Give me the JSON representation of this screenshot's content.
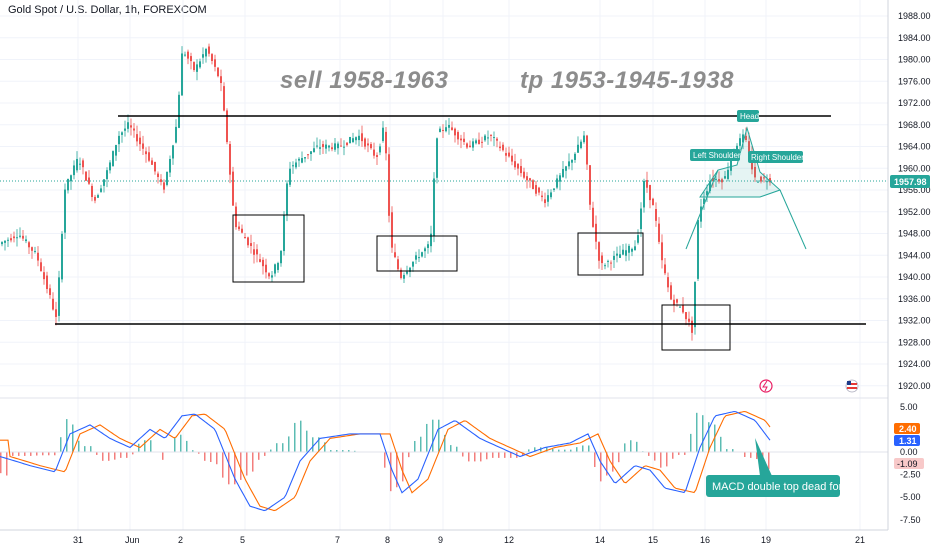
{
  "symbol": {
    "title": "Gold Spot / U.S. Dollar, 1h, FOREXCOM"
  },
  "annotations": {
    "sell": "sell  1958-1963",
    "tp": "tp  1953-1945-1938",
    "head": "Head",
    "left_shoulder": "Left Shoulder",
    "right_shoulder": "Right Shoulder",
    "macd_note": "MACD double top dead fork"
  },
  "price_axis": {
    "ticks": [
      "1988.00",
      "1984.00",
      "1980.00",
      "1976.00",
      "1972.00",
      "1968.00",
      "1964.00",
      "1960.00",
      "1956.00",
      "1952.00",
      "1948.00",
      "1944.00",
      "1940.00",
      "1936.00",
      "1932.00",
      "1928.00",
      "1924.00",
      "1920.00"
    ],
    "current_price": "1957.98"
  },
  "macd_axis": {
    "ticks": [
      "5.00",
      "2.50",
      "0.00",
      "-2.50",
      "-5.00",
      "-7.50"
    ],
    "badges": [
      "2.40",
      "1.31",
      "-1.09"
    ]
  },
  "date_axis": {
    "labels": [
      "31",
      "Jun",
      "2",
      "5",
      "7",
      "8",
      "9",
      "12",
      "14",
      "15",
      "16",
      "19",
      "21"
    ]
  },
  "colors": {
    "up": "#26a69a",
    "down": "#ef5350",
    "macd_line": "#2962ff",
    "signal_line": "#ff6d00",
    "level_line": "#000000",
    "callout_bg": "#26a69a",
    "price_badge": "#26a69a"
  },
  "chart_data": {
    "type": "line",
    "title": "Gold Spot / U.S. Dollar, 1h, FOREXCOM",
    "ylim": [
      1920,
      1988
    ],
    "levels": [
      1970,
      1932
    ],
    "x": [
      "31",
      "Jun",
      "2",
      "5",
      "7",
      "8",
      "9",
      "12",
      "14",
      "15",
      "16",
      "19"
    ],
    "series": [
      {
        "name": "",
        "values": [
          1948,
          1960,
          1983,
          1940,
          1964,
          1970,
          1942,
          1960,
          1964,
          1944,
          1930,
          1958
        ]
      }
    ],
    "current": 1957.98,
    "macd": {
      "macd": 1.31,
      "signal": 2.4,
      "histogram": -1.09,
      "ylim": [
        -7.5,
        5
      ]
    }
  }
}
